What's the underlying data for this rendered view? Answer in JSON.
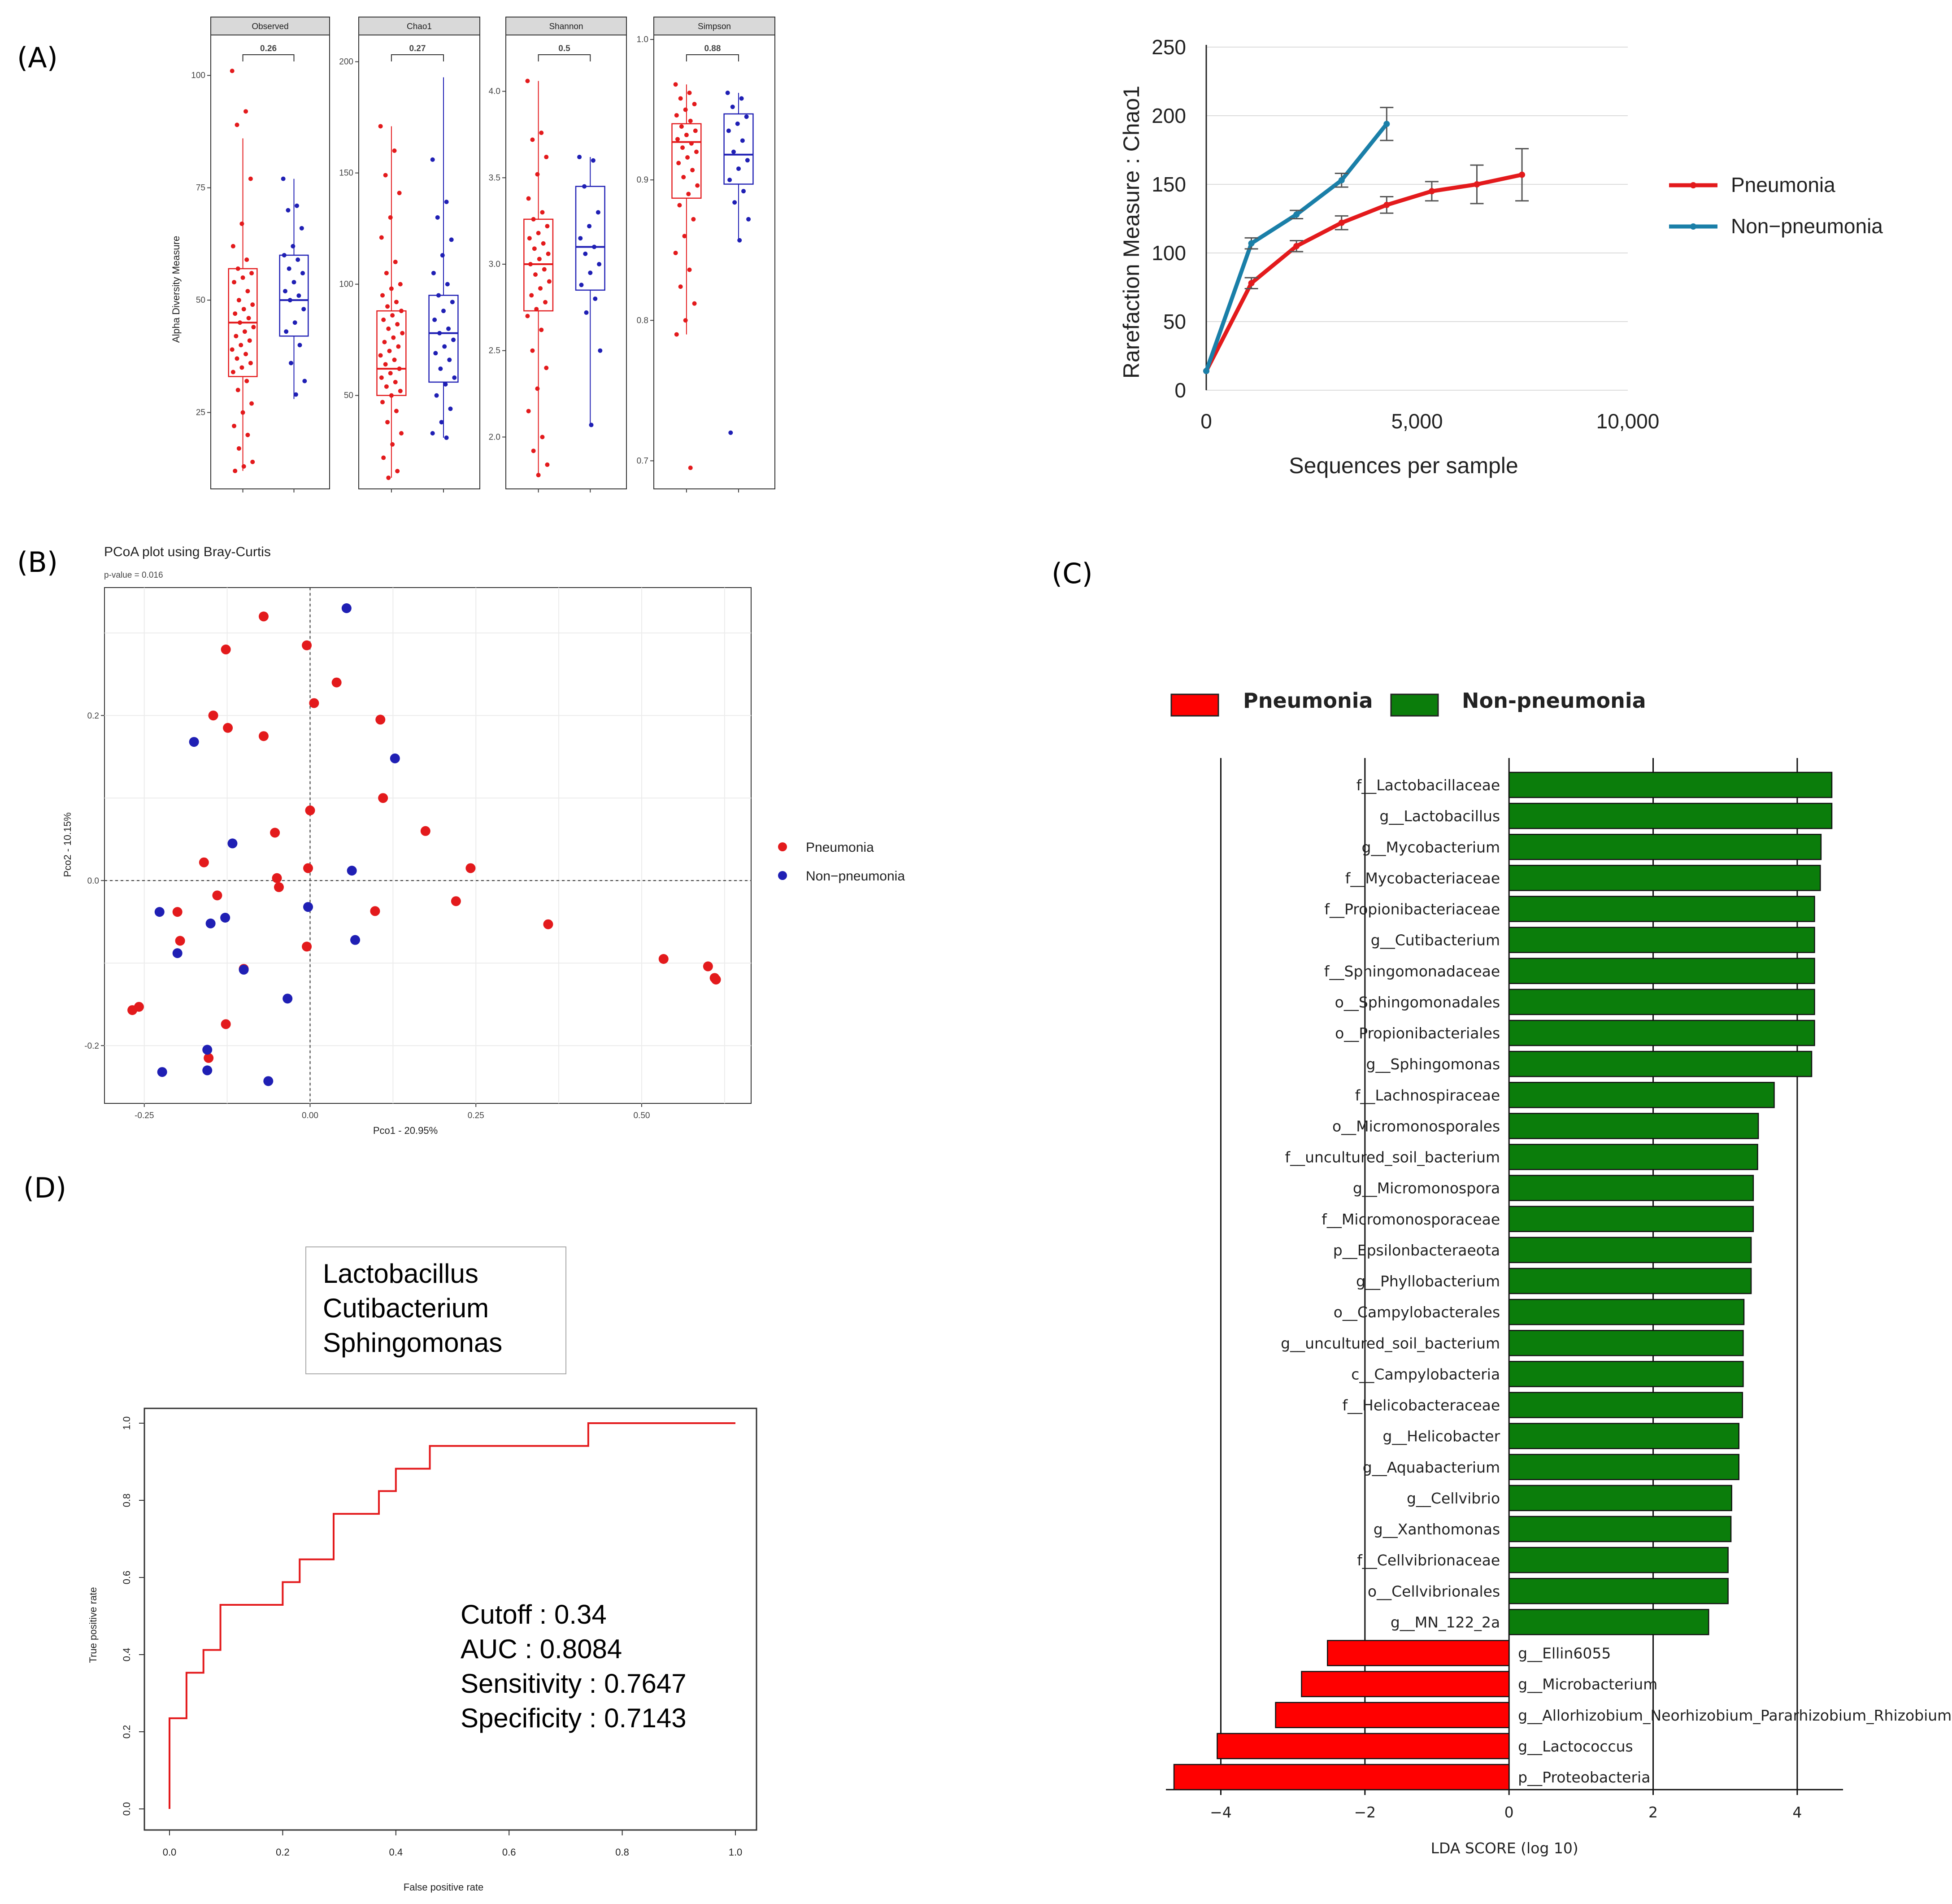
{
  "panels": {
    "A": "(A)",
    "B": "(B)",
    "C": "(C)",
    "D": "(D)"
  },
  "colors": {
    "pneumonia": "#e31a1c",
    "non_pneumonia_box": "#1f1fb4",
    "non_pneumonia_line": "#1a7fa8",
    "lefse_pneu": "#ff0000",
    "lefse_non": "#0b7d0b"
  },
  "chart_data": [
    {
      "id": "alpha_boxplots",
      "type": "box",
      "ylabel": "Alpha Diversity Measure",
      "facets": [
        {
          "name": "Observed",
          "p": "0.26",
          "ylim": [
            8,
            108
          ],
          "ticks": [
            "25",
            "50",
            "75",
            "100"
          ],
          "tick_values": [
            25,
            50,
            75,
            100
          ],
          "pneumonia": {
            "q1": 33,
            "median": 45,
            "q3": 57,
            "wlo": 12,
            "whi": 86
          },
          "non_pneumonia": {
            "q1": 42,
            "median": 50,
            "q3": 60,
            "wlo": 28,
            "whi": 77
          },
          "pneumonia_points": [
            101,
            92,
            89,
            77,
            67,
            62,
            59,
            57,
            56,
            55,
            54,
            52,
            50,
            49,
            48,
            47,
            46,
            45,
            44,
            43,
            42,
            41,
            40,
            39,
            38,
            37,
            36,
            35,
            34,
            32,
            30,
            27,
            25,
            22,
            20,
            17,
            14,
            13,
            12
          ],
          "non_pneumonia_points": [
            77,
            71,
            70,
            66,
            62,
            60,
            59,
            57,
            56,
            54,
            52,
            51,
            50,
            48,
            45,
            43,
            40,
            36,
            32,
            29
          ]
        },
        {
          "name": "Chao1",
          "p": "0.27",
          "ylim": [
            8,
            210
          ],
          "ticks": [
            "50",
            "100",
            "150",
            "200"
          ],
          "tick_values": [
            50,
            100,
            150,
            200
          ],
          "pneumonia": {
            "q1": 50,
            "median": 62,
            "q3": 88,
            "wlo": 13,
            "whi": 171
          },
          "non_pneumonia": {
            "q1": 56,
            "median": 78,
            "q3": 95,
            "wlo": 31,
            "whi": 193
          },
          "pneumonia_points": [
            171,
            160,
            149,
            141,
            130,
            121,
            110,
            105,
            100,
            98,
            95,
            92,
            90,
            88,
            86,
            84,
            82,
            80,
            78,
            76,
            74,
            72,
            70,
            68,
            66,
            64,
            62,
            60,
            58,
            56,
            54,
            52,
            50,
            47,
            43,
            38,
            33,
            28,
            22,
            16,
            13
          ],
          "non_pneumonia_points": [
            156,
            137,
            130,
            120,
            113,
            105,
            100,
            95,
            92,
            88,
            84,
            80,
            78,
            75,
            72,
            69,
            66,
            62,
            58,
            55,
            50,
            44,
            38,
            33,
            31
          ]
        },
        {
          "name": "Shannon",
          "p": "0.5",
          "ylim": [
            1.7,
            4.3
          ],
          "ticks": [
            "2.0",
            "2.5",
            "3.0",
            "3.5",
            "4.0"
          ],
          "tick_values": [
            2.0,
            2.5,
            3.0,
            3.5,
            4.0
          ],
          "pneumonia": {
            "q1": 2.73,
            "median": 3.0,
            "q3": 3.26,
            "wlo": 1.78,
            "whi": 4.06
          },
          "non_pneumonia": {
            "q1": 2.85,
            "median": 3.1,
            "q3": 3.45,
            "wlo": 2.07,
            "whi": 3.62
          },
          "pneumonia_points": [
            4.06,
            3.76,
            3.72,
            3.62,
            3.52,
            3.38,
            3.3,
            3.26,
            3.22,
            3.18,
            3.15,
            3.12,
            3.09,
            3.06,
            3.03,
            3.0,
            2.97,
            2.94,
            2.9,
            2.86,
            2.82,
            2.78,
            2.74,
            2.7,
            2.62,
            2.5,
            2.4,
            2.28,
            2.15,
            2.0,
            1.92,
            1.84,
            1.78
          ],
          "non_pneumonia_points": [
            3.62,
            3.6,
            3.45,
            3.3,
            3.22,
            3.15,
            3.1,
            3.06,
            3.0,
            2.95,
            2.88,
            2.8,
            2.72,
            2.5,
            2.07
          ]
        },
        {
          "name": "Simpson",
          "p": "0.88",
          "ylim": [
            0.68,
            1.0
          ],
          "ticks": [
            "0.7",
            "0.8",
            "0.9",
            "1.0"
          ],
          "tick_values": [
            0.7,
            0.8,
            0.9,
            1.0
          ],
          "pneumonia": {
            "q1": 0.887,
            "median": 0.927,
            "q3": 0.94,
            "wlo": 0.79,
            "whi": 0.968
          },
          "non_pneumonia": {
            "q1": 0.897,
            "median": 0.918,
            "q3": 0.947,
            "wlo": 0.857,
            "whi": 0.962
          },
          "pneumonia_points": [
            0.968,
            0.962,
            0.958,
            0.954,
            0.95,
            0.946,
            0.942,
            0.938,
            0.935,
            0.932,
            0.929,
            0.926,
            0.923,
            0.92,
            0.916,
            0.912,
            0.907,
            0.902,
            0.896,
            0.89,
            0.882,
            0.872,
            0.86,
            0.848,
            0.836,
            0.824,
            0.812,
            0.8,
            0.79,
            0.695
          ],
          "non_pneumonia_points": [
            0.962,
            0.958,
            0.952,
            0.945,
            0.94,
            0.935,
            0.928,
            0.92,
            0.914,
            0.908,
            0.9,
            0.892,
            0.884,
            0.872,
            0.857,
            0.72
          ]
        }
      ]
    },
    {
      "id": "rarefaction",
      "type": "line",
      "xlabel": "Sequences per sample",
      "ylabel": "Rarefaction Measure : Chao1",
      "xlim": [
        0,
        10000
      ],
      "ylim": [
        0,
        250
      ],
      "xticks": [
        {
          "v": 0,
          "t": "0"
        },
        {
          "v": 5000,
          "t": "5,000"
        },
        {
          "v": 10000,
          "t": "10,000"
        }
      ],
      "yticks": [
        {
          "v": 0,
          "t": "0"
        },
        {
          "v": 50,
          "t": "50"
        },
        {
          "v": 100,
          "t": "100"
        },
        {
          "v": 150,
          "t": "150"
        },
        {
          "v": 200,
          "t": "200"
        },
        {
          "v": 250,
          "t": "250"
        }
      ],
      "series": [
        {
          "name": "Pneumonia",
          "x": [
            0,
            1070,
            2140,
            3210,
            4280,
            5350,
            6420,
            7490
          ],
          "y": [
            14,
            78,
            105,
            122,
            135,
            145,
            150,
            157
          ],
          "err": [
            0,
            4,
            4,
            5,
            6,
            7,
            14,
            19
          ]
        },
        {
          "name": "Non−pneumonia",
          "x": [
            0,
            1070,
            2140,
            3210,
            4280
          ],
          "y": [
            14,
            107,
            128,
            153,
            194
          ],
          "err": [
            0,
            4,
            3,
            5,
            12
          ]
        }
      ]
    },
    {
      "id": "pcoa",
      "type": "scatter",
      "title": "PCoA plot using Bray-Curtis",
      "subtitle": "p-value = 0.016",
      "xlabel": "Pco1 - 20.95%",
      "ylabel": "Pco2 - 10.15%",
      "xlim": [
        -0.31,
        0.665
      ],
      "ylim": [
        -0.27,
        0.355
      ],
      "xticks": [
        {
          "v": -0.25,
          "t": "-0.25"
        },
        {
          "v": 0,
          "t": "0.00"
        },
        {
          "v": 0.25,
          "t": "0.25"
        },
        {
          "v": 0.5,
          "t": "0.50"
        }
      ],
      "yticks": [
        {
          "v": -0.2,
          "t": "-0.2"
        },
        {
          "v": 0,
          "t": "0.0"
        },
        {
          "v": 0.2,
          "t": "0.2"
        }
      ],
      "series": [
        {
          "name": "Pneumonia",
          "points": [
            [
              -0.07,
              0.32
            ],
            [
              -0.005,
              0.285
            ],
            [
              -0.127,
              0.28
            ],
            [
              0.04,
              0.24
            ],
            [
              -0.146,
              0.2
            ],
            [
              0.006,
              0.215
            ],
            [
              -0.124,
              0.185
            ],
            [
              -0.07,
              0.175
            ],
            [
              0.106,
              0.195
            ],
            [
              0.11,
              0.1
            ],
            [
              0.0,
              0.085
            ],
            [
              0.174,
              0.06
            ],
            [
              -0.053,
              0.058
            ],
            [
              -0.16,
              0.022
            ],
            [
              -0.003,
              0.015
            ],
            [
              0.242,
              0.015
            ],
            [
              -0.05,
              0.003
            ],
            [
              -0.047,
              -0.008
            ],
            [
              -0.14,
              -0.018
            ],
            [
              0.22,
              -0.025
            ],
            [
              -0.2,
              -0.038
            ],
            [
              0.098,
              -0.037
            ],
            [
              0.359,
              -0.053
            ],
            [
              -0.196,
              -0.073
            ],
            [
              -0.005,
              -0.08
            ],
            [
              -0.1,
              -0.107
            ],
            [
              0.533,
              -0.095
            ],
            [
              0.6,
              -0.104
            ],
            [
              0.61,
              -0.118
            ],
            [
              0.612,
              -0.12
            ],
            [
              -0.268,
              -0.157
            ],
            [
              -0.258,
              -0.153
            ],
            [
              -0.127,
              -0.174
            ],
            [
              -0.153,
              -0.215
            ]
          ]
        },
        {
          "name": "Non−pneumonia",
          "points": [
            [
              0.055,
              0.33
            ],
            [
              -0.175,
              0.168
            ],
            [
              0.128,
              0.148
            ],
            [
              -0.117,
              0.045
            ],
            [
              0.063,
              0.012
            ],
            [
              -0.003,
              -0.032
            ],
            [
              -0.227,
              -0.038
            ],
            [
              -0.128,
              -0.045
            ],
            [
              -0.15,
              -0.052
            ],
            [
              0.068,
              -0.072
            ],
            [
              -0.2,
              -0.088
            ],
            [
              -0.1,
              -0.108
            ],
            [
              -0.034,
              -0.143
            ],
            [
              -0.155,
              -0.205
            ],
            [
              -0.223,
              -0.232
            ],
            [
              -0.155,
              -0.23
            ],
            [
              -0.063,
              -0.243
            ]
          ]
        }
      ]
    },
    {
      "id": "lefse",
      "type": "bar",
      "orientation": "horizontal",
      "xlabel": "LDA SCORE (log 10)",
      "xlim": [
        -4.7,
        4.85
      ],
      "xticks": [
        {
          "v": -4,
          "t": "−4"
        },
        {
          "v": -2,
          "t": "−2"
        },
        {
          "v": 0,
          "t": "0"
        },
        {
          "v": 2,
          "t": "2"
        },
        {
          "v": 4,
          "t": "4"
        }
      ],
      "legend": [
        "Pneumonia",
        "Non-pneumonia"
      ],
      "categories": [
        "f__Lactobacillaceae",
        "g__Lactobacillus",
        "g__Mycobacterium",
        "f__Mycobacteriaceae",
        "f__Propionibacteriaceae",
        "g__Cutibacterium",
        "f__Sphingomonadaceae",
        "o__Sphingomonadales",
        "o__Propionibacteriales",
        "g__Sphingomonas",
        "f__Lachnospiraceae",
        "o__Micromonosporales",
        "f__uncultured_soil_bacterium",
        "g__Micromonospora",
        "f__Micromonosporaceae",
        "p__Epsilonbacteraeota",
        "g__Phyllobacterium",
        "o__Campylobacterales",
        "g__uncultured_soil_bacterium",
        "c__Campylobacteria",
        "f__Helicobacteraceae",
        "g__Helicobacter",
        "g__Aquabacterium",
        "g__Cellvibrio",
        "g__Xanthomonas",
        "f__Cellvibrionaceae",
        "o__Cellvibrionales",
        "g__MN_122_2a",
        "g__Ellin6055",
        "g__Microbacterium",
        "g__Allorhizobium_Neorhizobium_Pararhizobium_Rhizobium",
        "g__Lactococcus",
        "p__Proteobacteria"
      ],
      "values": [
        4.48,
        4.48,
        4.33,
        4.32,
        4.24,
        4.24,
        4.24,
        4.24,
        4.24,
        4.2,
        3.68,
        3.46,
        3.45,
        3.39,
        3.39,
        3.36,
        3.36,
        3.26,
        3.25,
        3.25,
        3.24,
        3.19,
        3.19,
        3.09,
        3.08,
        3.04,
        3.04,
        2.77,
        -2.52,
        -2.88,
        -3.24,
        -4.05,
        -4.65
      ]
    },
    {
      "id": "roc",
      "type": "line",
      "xlabel": "False positive rate",
      "ylabel": "True positive rate",
      "xlim": [
        0,
        1
      ],
      "ylim": [
        0,
        1
      ],
      "xticks": [
        "0.0",
        "0.2",
        "0.4",
        "0.6",
        "0.8",
        "1.0"
      ],
      "yticks": [
        "0.0",
        "0.2",
        "0.4",
        "0.6",
        "0.8",
        "1.0"
      ],
      "markers": [
        "Lactobacillus",
        "Cutibacterium",
        "Sphingomonas"
      ],
      "stats": [
        "Cutoff : 0.34",
        "AUC : 0.8084",
        "Sensitivity : 0.7647",
        "Specificity : 0.7143"
      ],
      "fpr": [
        0,
        0,
        0.03,
        0.03,
        0.06,
        0.06,
        0.09,
        0.09,
        0.2,
        0.2,
        0.23,
        0.23,
        0.29,
        0.29,
        0.37,
        0.37,
        0.4,
        0.4,
        0.46,
        0.46,
        0.74,
        0.74,
        1.0
      ],
      "tpr": [
        0,
        0.235,
        0.235,
        0.353,
        0.353,
        0.412,
        0.412,
        0.529,
        0.529,
        0.588,
        0.588,
        0.647,
        0.647,
        0.765,
        0.765,
        0.824,
        0.824,
        0.882,
        0.882,
        0.941,
        0.941,
        1.0,
        1.0
      ]
    }
  ]
}
